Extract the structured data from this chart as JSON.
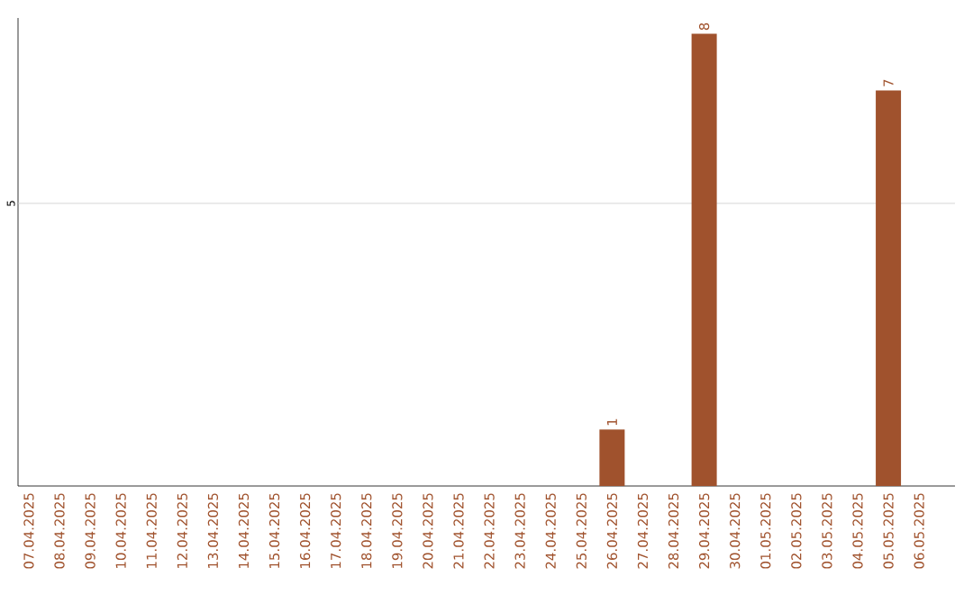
{
  "chart_data": {
    "type": "bar",
    "categories": [
      "07.04.2025",
      "08.04.2025",
      "09.04.2025",
      "10.04.2025",
      "11.04.2025",
      "12.04.2025",
      "13.04.2025",
      "14.04.2025",
      "15.04.2025",
      "16.04.2025",
      "17.04.2025",
      "18.04.2025",
      "19.04.2025",
      "20.04.2025",
      "21.04.2025",
      "22.04.2025",
      "23.04.2025",
      "24.04.2025",
      "25.04.2025",
      "26.04.2025",
      "27.04.2025",
      "28.04.2025",
      "29.04.2025",
      "30.04.2025",
      "01.05.2025",
      "02.05.2025",
      "03.05.2025",
      "04.05.2025",
      "05.05.2025",
      "06.05.2025"
    ],
    "values": [
      null,
      null,
      null,
      null,
      null,
      null,
      null,
      null,
      null,
      null,
      null,
      null,
      null,
      null,
      null,
      null,
      null,
      null,
      null,
      1,
      null,
      null,
      8,
      null,
      null,
      null,
      null,
      null,
      7,
      null
    ],
    "value_labels": [
      null,
      null,
      null,
      null,
      null,
      null,
      null,
      null,
      null,
      null,
      null,
      null,
      null,
      null,
      null,
      null,
      null,
      null,
      null,
      "1",
      null,
      null,
      "8",
      null,
      null,
      null,
      null,
      null,
      "7",
      null
    ],
    "color": "#a0522d",
    "ref_lines": [
      {
        "axis": "y",
        "value": 5,
        "label": "5",
        "color": "#cccccc"
      }
    ]
  }
}
